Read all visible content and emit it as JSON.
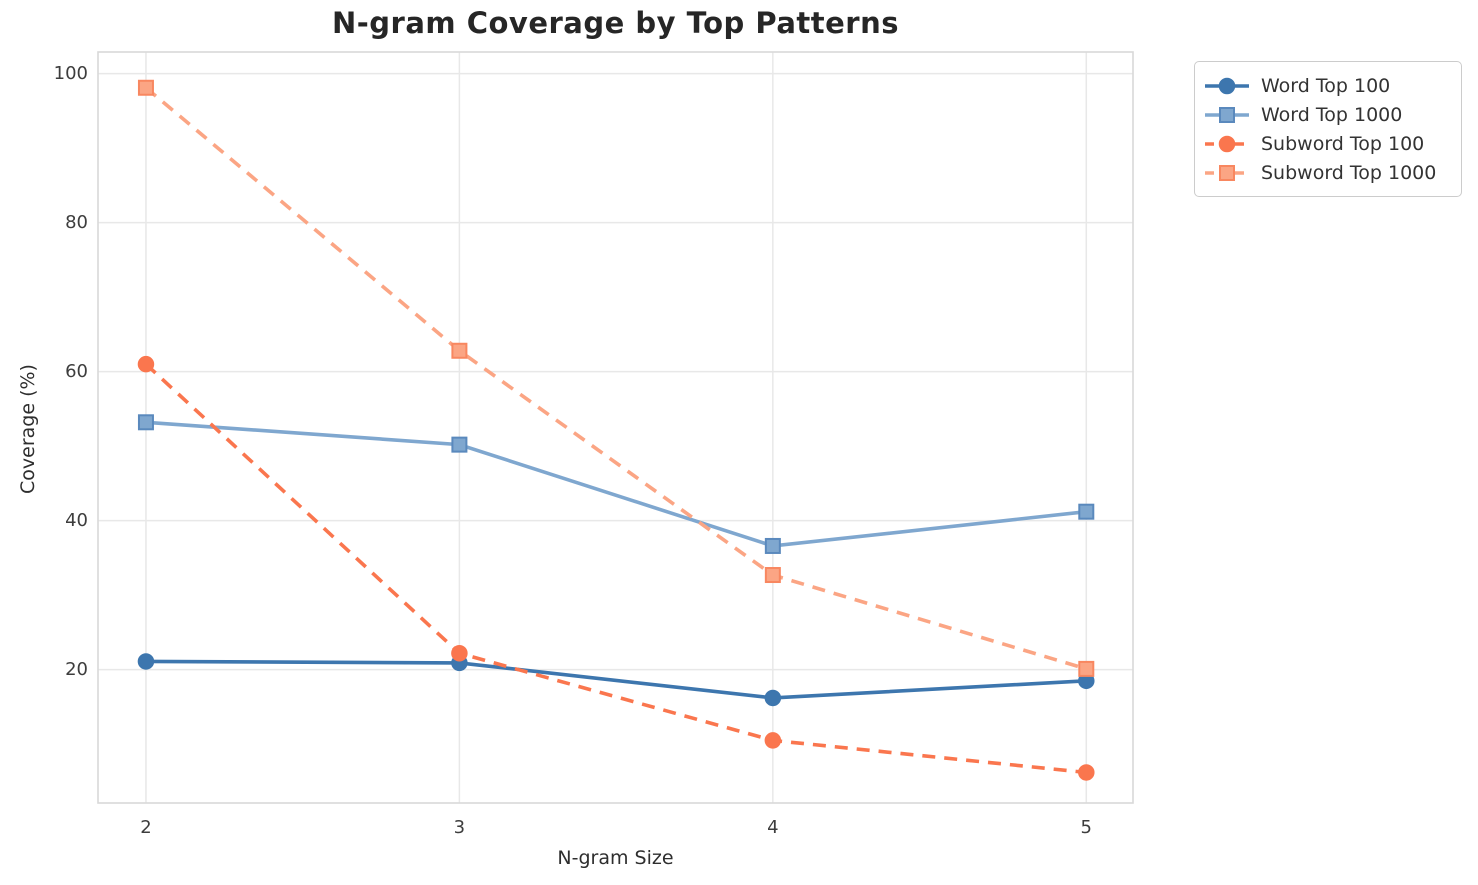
{
  "chart_data": {
    "type": "line",
    "title": "N-gram Coverage by Top Patterns",
    "xlabel": "N-gram Size",
    "ylabel": "Coverage (%)",
    "x": [
      2,
      3,
      4,
      5
    ],
    "xticks": [
      "2",
      "3",
      "4",
      "5"
    ],
    "yticks": [
      "20",
      "40",
      "60",
      "80",
      "100"
    ],
    "ytick_values": [
      20,
      40,
      60,
      80,
      100
    ],
    "xlim": [
      1.847,
      5.149
    ],
    "ylim": [
      2.1,
      102.9
    ],
    "grid": true,
    "legend_position": "outside-top-right",
    "series": [
      {
        "name": "Word Top 100",
        "values": [
          21.1,
          20.9,
          16.2,
          18.5
        ],
        "color": "#3d76ae",
        "marker_fill": "#3d76ae",
        "marker_edge": "#3d76ae",
        "style": "solid",
        "marker": "circle"
      },
      {
        "name": "Word Top 1000",
        "values": [
          53.2,
          50.2,
          36.6,
          41.2
        ],
        "color": "#7fa7cf",
        "marker_fill": "#7fa7cf",
        "marker_edge": "#5a89bd",
        "style": "solid",
        "marker": "square"
      },
      {
        "name": "Subword Top 100",
        "values": [
          61.0,
          22.2,
          10.5,
          6.2
        ],
        "color": "#fa764e",
        "marker_fill": "#fa764e",
        "marker_edge": "#fa764e",
        "style": "dashed",
        "marker": "circle"
      },
      {
        "name": "Subword Top 1000",
        "values": [
          98.1,
          62.8,
          32.7,
          20.1
        ],
        "color": "#fba584",
        "marker_fill": "#fba584",
        "marker_edge": "#f88760",
        "style": "dashed",
        "marker": "square"
      }
    ],
    "style_colors": {
      "grid": "#e8e8e8",
      "spine": "#d9d9d9",
      "title_text": "#262626",
      "tick_text": "#3d3d3d"
    }
  }
}
